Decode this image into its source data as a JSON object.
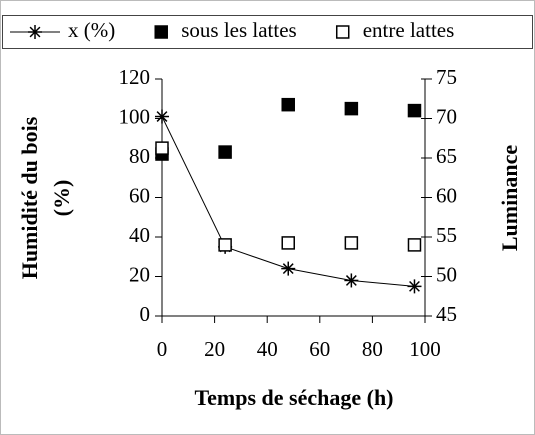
{
  "chart_data": {
    "type": "line",
    "x": [
      0,
      24,
      48,
      72,
      96
    ],
    "xlabel": "Temps de séchage (h)",
    "ylabel": [
      "Humidité du bois",
      "(%)"
    ],
    "y2label": "Luminance",
    "xlim": [
      0,
      100
    ],
    "xticks": [
      0,
      20,
      40,
      60,
      80,
      100
    ],
    "ylim": [
      0,
      120
    ],
    "yticks": [
      0,
      20,
      40,
      60,
      80,
      100,
      120
    ],
    "y2lim": [
      45,
      75
    ],
    "y2ticks": [
      45,
      50,
      55,
      60,
      65,
      70,
      75
    ],
    "legend": "top",
    "series": [
      {
        "name": "x (%)",
        "color": "#000000",
        "marker": "asterisk",
        "values": [
          101,
          35,
          24,
          18,
          15
        ]
      },
      {
        "name": "sous les lattes",
        "color": "#000000",
        "marker": "filled-square",
        "axis": "y2",
        "values": [
          65.5,
          65.75,
          71.75,
          71.25,
          71
        ]
      },
      {
        "name": "entre lattes",
        "color": "#000000",
        "marker": "open-square",
        "axis": "y2",
        "values": [
          66.25,
          54,
          54.25,
          54.25,
          54
        ]
      }
    ]
  }
}
